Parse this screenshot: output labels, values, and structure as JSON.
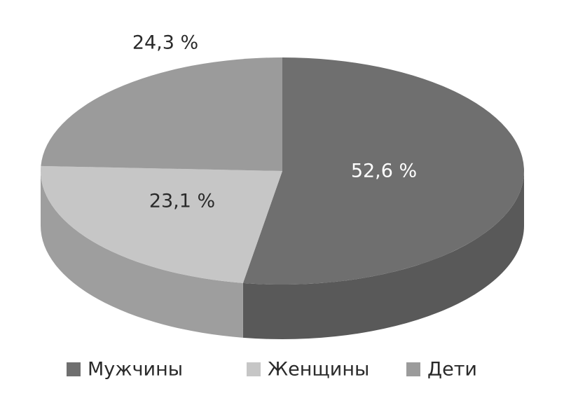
{
  "chart_data": {
    "type": "pie",
    "categories": [
      "Мужчины",
      "Женщины",
      "Дети"
    ],
    "values": [
      52.6,
      23.1,
      24.3
    ],
    "value_labels": [
      "52,6 %",
      "23,1 %",
      "24,3 %"
    ],
    "colors": [
      "#6f6f6f",
      "#c6c6c6",
      "#9b9b9b"
    ]
  }
}
